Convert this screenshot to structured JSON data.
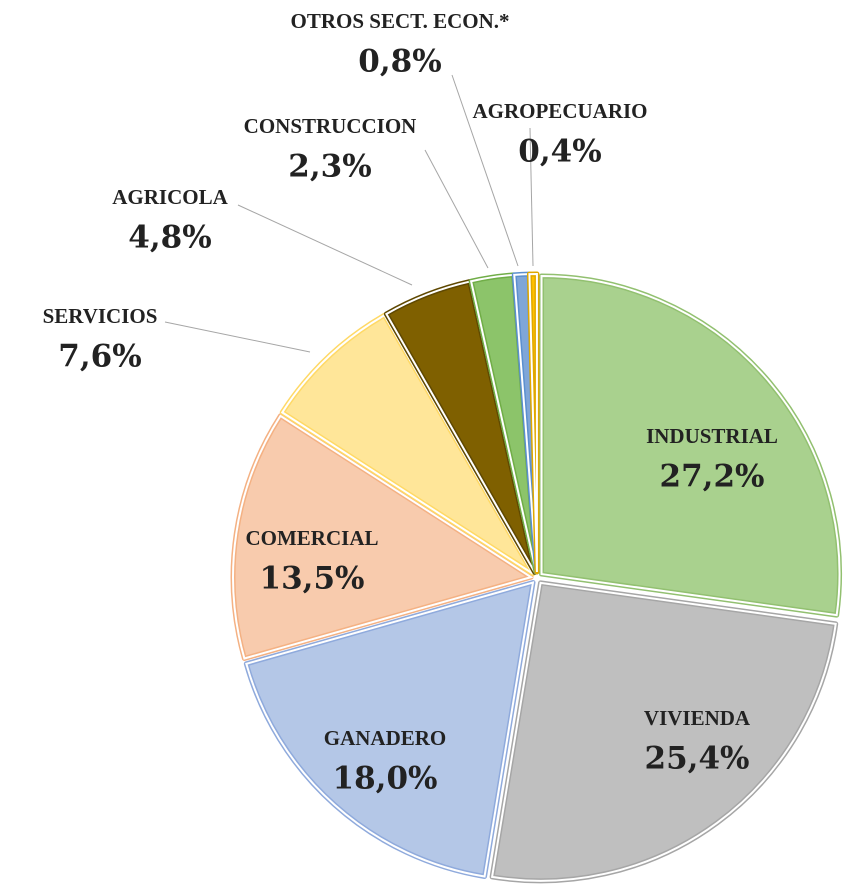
{
  "chart_data": {
    "type": "pie",
    "categories": [
      "INDUSTRIAL",
      "VIVIENDA",
      "GANADERO",
      "COMERCIAL",
      "SERVICIOS",
      "AGRICOLA",
      "CONSTRUCCION",
      "OTROS SECT. ECON.*",
      "AGROPECUARIO"
    ],
    "values": [
      27.2,
      25.4,
      18.0,
      13.5,
      7.6,
      4.8,
      2.3,
      0.8,
      0.4
    ],
    "value_labels": [
      "27,2%",
      "25,4%",
      "18,0%",
      "13,5%",
      "7,6%",
      "4,8%",
      "2,3%",
      "0,8%",
      "0,4%"
    ],
    "colors": [
      "#a9d18e",
      "#bfbfbf",
      "#b4c7e7",
      "#f8cbad",
      "#ffe699",
      "#7f6000",
      "#8cc46a",
      "#7fa6d8",
      "#ffc000"
    ],
    "borders": [
      "#92c070",
      "#a6a6a6",
      "#8faadc",
      "#f4b183",
      "#ffd966",
      "#5f4800",
      "#70ad47",
      "#5b8fcf",
      "#e0a800"
    ]
  }
}
